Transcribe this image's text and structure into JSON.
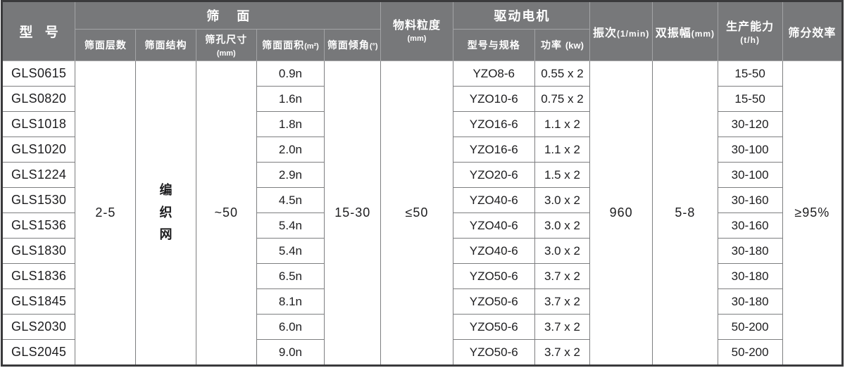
{
  "table": {
    "header": {
      "model": "型 号",
      "sieve_group": "筛 面",
      "sieve_sub": [
        {
          "label": "筛面层数",
          "unit": ""
        },
        {
          "label": "筛面结构",
          "unit": ""
        },
        {
          "label": "筛孔尺寸",
          "unit": "(mm)"
        },
        {
          "label": "筛面面积",
          "unit": "(m²)"
        },
        {
          "label": "筛面倾角",
          "unit": "(°)"
        }
      ],
      "particle": {
        "label": "物料粒度",
        "unit": "(mm)"
      },
      "motor_group": "驱动电机",
      "motor_sub": [
        {
          "label": "型号与规格",
          "unit": ""
        },
        {
          "label": "功率",
          "unit": "(kw)"
        }
      ],
      "frequency": {
        "label": "振次",
        "unit": "(1/min)"
      },
      "amplitude": {
        "label": "双振幅",
        "unit": "(mm)"
      },
      "capacity": {
        "label": "生产能力",
        "unit": "(t/h)"
      },
      "efficiency": {
        "label": "筛分效率",
        "unit": ""
      }
    },
    "merged": {
      "layers": "2-5",
      "structure": "编织网",
      "mesh_size": "~50",
      "inclination": "15-30",
      "particle_size": "≤50",
      "frequency": "960",
      "amplitude": "5-8",
      "efficiency": "≥95%"
    },
    "rows": [
      {
        "model": "GLS0615",
        "area": "0.9n",
        "motor": "YZO8-6",
        "power": "0.55 x 2",
        "capacity": "15-50"
      },
      {
        "model": "GLS0820",
        "area": "1.6n",
        "motor": "YZO10-6",
        "power": "0.75 x 2",
        "capacity": "15-50"
      },
      {
        "model": "GLS1018",
        "area": "1.8n",
        "motor": "YZO16-6",
        "power": "1.1 x 2",
        "capacity": "30-120"
      },
      {
        "model": "GLS1020",
        "area": "2.0n",
        "motor": "YZO16-6",
        "power": "1.1 x 2",
        "capacity": "30-100"
      },
      {
        "model": "GLS1224",
        "area": "2.9n",
        "motor": "YZO20-6",
        "power": "1.5 x 2",
        "capacity": "30-100"
      },
      {
        "model": "GLS1530",
        "area": "4.5n",
        "motor": "YZO40-6",
        "power": "3.0 x 2",
        "capacity": "30-160"
      },
      {
        "model": "GLS1536",
        "area": "5.4n",
        "motor": "YZO40-6",
        "power": "3.0 x 2",
        "capacity": "30-160"
      },
      {
        "model": "GLS1830",
        "area": "5.4n",
        "motor": "YZO40-6",
        "power": "3.0 x 2",
        "capacity": "30-180"
      },
      {
        "model": "GLS1836",
        "area": "6.5n",
        "motor": "YZO50-6",
        "power": "3.7 x 2",
        "capacity": "30-180"
      },
      {
        "model": "GLS1845",
        "area": "8.1n",
        "motor": "YZO50-6",
        "power": "3.7 x 2",
        "capacity": "30-180"
      },
      {
        "model": "GLS2030",
        "area": "6.0n",
        "motor": "YZO50-6",
        "power": "3.7 x 2",
        "capacity": "50-200"
      },
      {
        "model": "GLS2045",
        "area": "9.0n",
        "motor": "YZO50-6",
        "power": "3.7 x 2",
        "capacity": "50-200"
      }
    ]
  },
  "colors": {
    "header_bg": "#77787a",
    "header_text": "#ffffff",
    "header_grid": "#a2a3a5",
    "body_grid": "#7d7e80",
    "outer_border": "#3a3a3c",
    "body_text": "#1d1d1f"
  }
}
